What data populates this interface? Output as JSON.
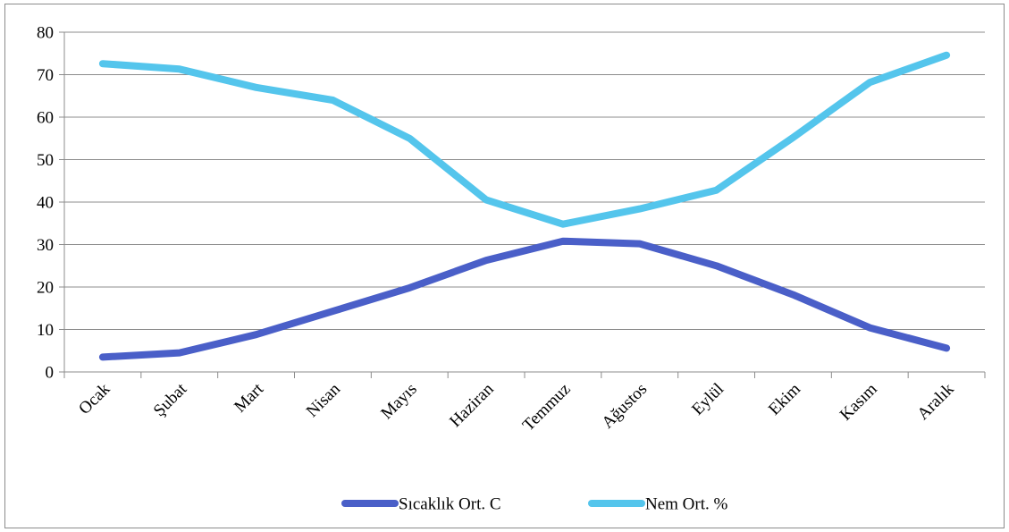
{
  "chart_data": {
    "type": "line",
    "categories": [
      "Ocak",
      "Şubat",
      "Mart",
      "Nisan",
      "Mayıs",
      "Haziran",
      "Temmuz",
      "Ağustos",
      "Eylül",
      "Ekim",
      "Kasım",
      "Aralık"
    ],
    "series": [
      {
        "name": "Sıcaklık Ort. C",
        "color": "#4a5fc8",
        "values": [
          3.5,
          4.5,
          8.8,
          14.3,
          19.8,
          26.3,
          30.8,
          30.2,
          25.0,
          18.2,
          10.4,
          5.6
        ]
      },
      {
        "name": "Nem Ort. %",
        "color": "#54c5ec",
        "values": [
          72.6,
          71.3,
          67.0,
          64.0,
          55.0,
          40.5,
          34.8,
          38.4,
          42.8,
          55.2,
          68.2,
          74.6
        ]
      }
    ],
    "ylim": [
      0,
      80
    ],
    "yticks": [
      0,
      10,
      20,
      30,
      40,
      50,
      60,
      70,
      80
    ],
    "grid": true,
    "legend_position": "bottom"
  }
}
